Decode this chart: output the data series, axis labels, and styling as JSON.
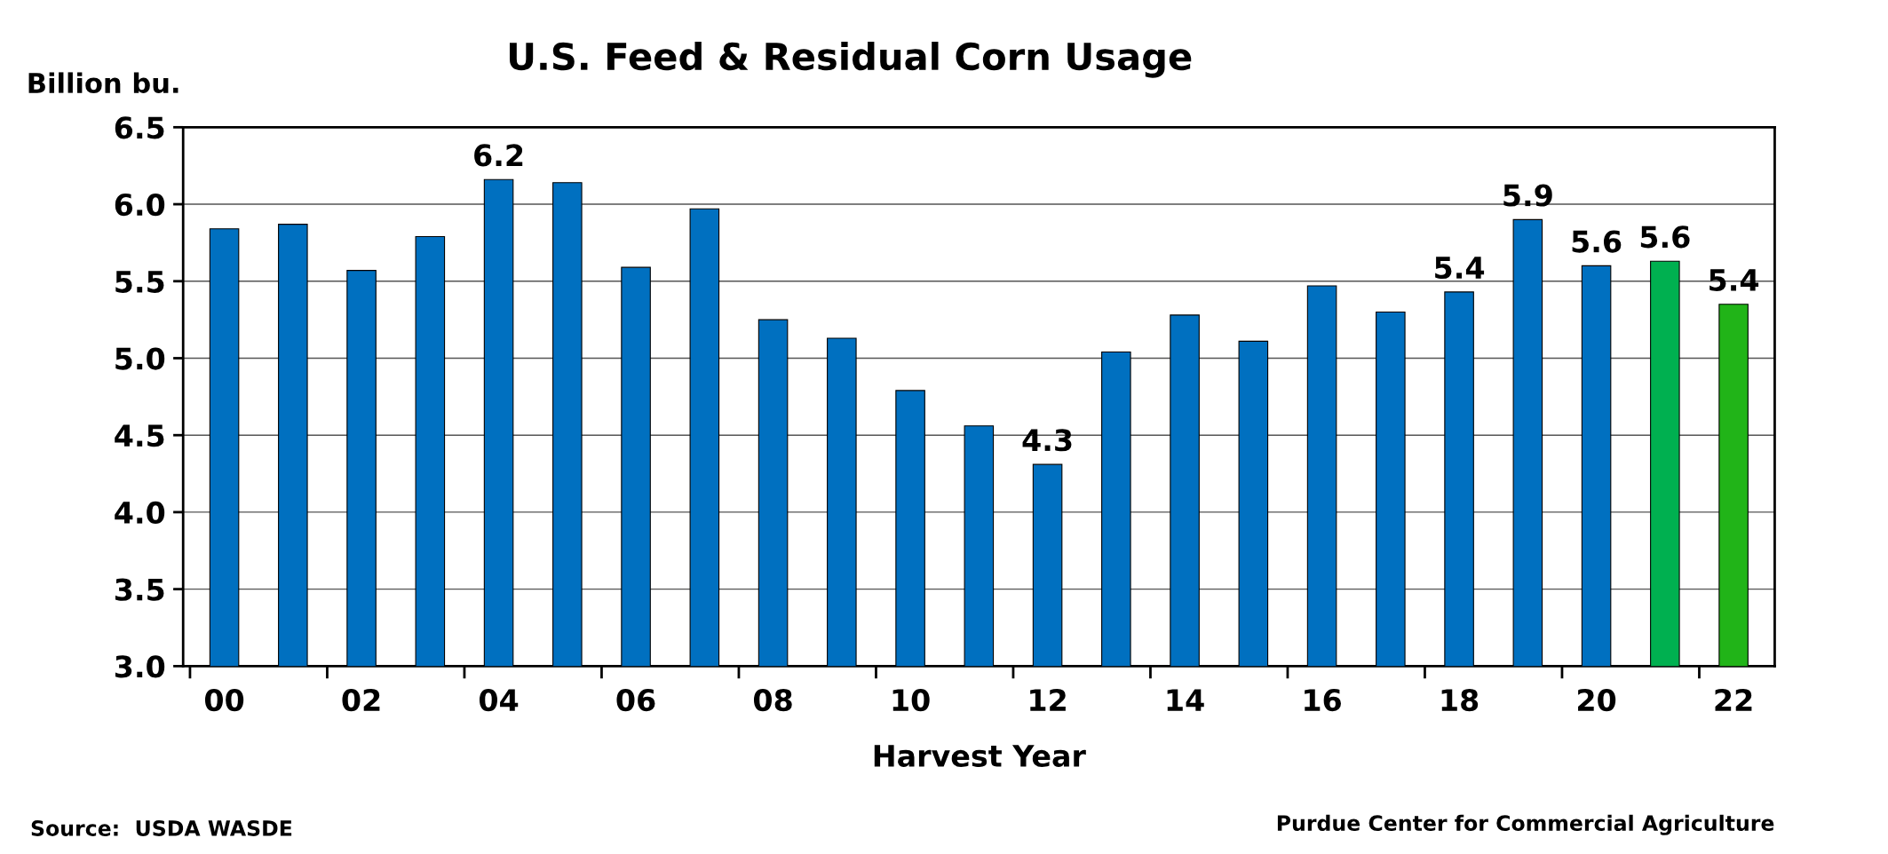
{
  "chart_data": {
    "type": "bar",
    "title": "U.S. Feed & Residual Corn Usage",
    "xlabel": "Harvest Year",
    "ylabel": "Billion bu.",
    "categories": [
      "00",
      null,
      "02",
      null,
      "04",
      null,
      "06",
      null,
      "08",
      null,
      "10",
      null,
      "12",
      null,
      "14",
      null,
      "16",
      null,
      "18",
      null,
      "20",
      null,
      "22"
    ],
    "values": [
      5.84,
      5.87,
      5.57,
      5.79,
      6.16,
      6.14,
      5.59,
      5.97,
      5.25,
      5.13,
      4.79,
      4.56,
      4.31,
      5.04,
      5.28,
      5.11,
      5.47,
      5.3,
      5.43,
      5.9,
      5.6,
      5.63,
      5.35
    ],
    "colors": [
      "#0070c0",
      "#0070c0",
      "#0070c0",
      "#0070c0",
      "#0070c0",
      "#0070c0",
      "#0070c0",
      "#0070c0",
      "#0070c0",
      "#0070c0",
      "#0070c0",
      "#0070c0",
      "#0070c0",
      "#0070c0",
      "#0070c0",
      "#0070c0",
      "#0070c0",
      "#0070c0",
      "#0070c0",
      "#0070c0",
      "#0070c0",
      "#00b050",
      "#21b418"
    ],
    "value_labels": [
      null,
      null,
      null,
      null,
      "6.2",
      null,
      null,
      null,
      null,
      null,
      null,
      null,
      "4.3",
      null,
      null,
      null,
      null,
      null,
      "5.4",
      "5.9",
      "5.6",
      "5.6",
      "5.4"
    ],
    "ylim": [
      3.0,
      6.5
    ],
    "yticks": [
      {
        "value": 3.0,
        "label": "3.0"
      },
      {
        "value": 3.5,
        "label": "3.5"
      },
      {
        "value": 4.0,
        "label": "4.0"
      },
      {
        "value": 4.5,
        "label": "4.5"
      },
      {
        "value": 5.0,
        "label": "5.0"
      },
      {
        "value": 5.5,
        "label": "5.5"
      },
      {
        "value": 6.0,
        "label": "6.0"
      },
      {
        "value": 6.5,
        "label": "6.5"
      }
    ],
    "grid": "y",
    "legend": false,
    "annotations": [
      "Source:  USDA WASDE",
      "Purdue Center for Commercial Agriculture"
    ]
  }
}
